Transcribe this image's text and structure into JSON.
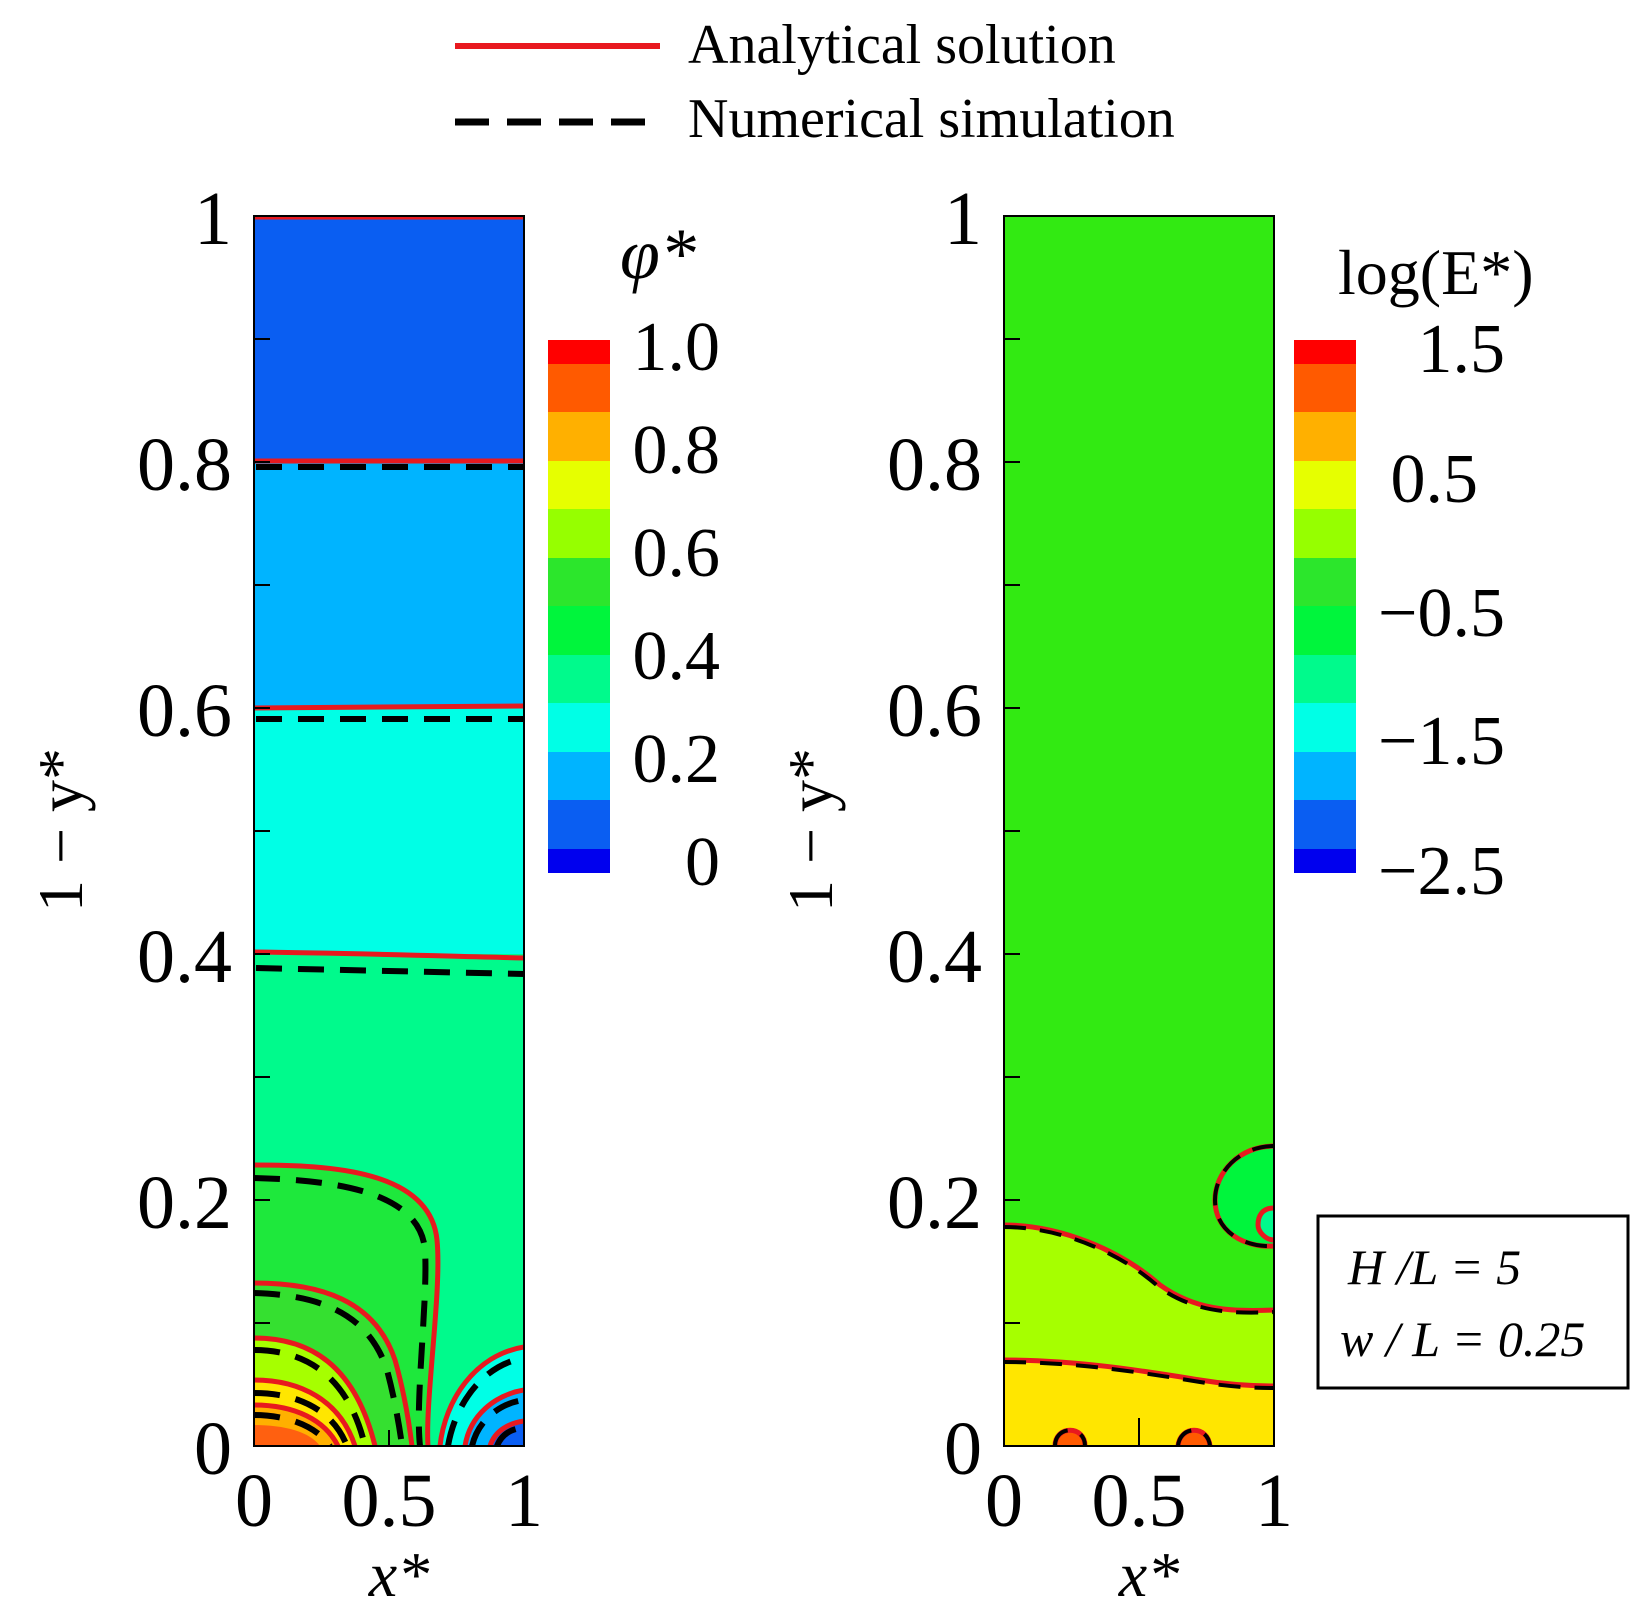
{
  "legend": {
    "analytical": "Analytical solution",
    "numerical": "Numerical simulation",
    "analytical_color": "#e8191f",
    "numerical_color": "#000000"
  },
  "params": {
    "line1": "H /L = 5",
    "line2": "w / L = 0.25"
  },
  "chart_data": [
    {
      "type": "heatmap",
      "title": "",
      "variable": "φ*",
      "xlabel": "x*",
      "ylabel": "1 − y*",
      "xlim": [
        0,
        1
      ],
      "ylim": [
        0,
        1
      ],
      "x_ticks": [
        "0",
        "0.5",
        "1"
      ],
      "y_ticks": [
        "0",
        "0.2",
        "0.4",
        "0.6",
        "0.8",
        "1"
      ],
      "colorbar": {
        "label": "φ*",
        "range": [
          0,
          1.0
        ],
        "tick_labels": [
          "1.0",
          "0.8",
          "0.6",
          "0.4",
          "0.2",
          "0"
        ],
        "levels": 11
      },
      "regions": [
        {
          "y_from": 0.8,
          "y_to": 1.0,
          "color": "#0a5ef2"
        },
        {
          "y_from": 0.6,
          "y_to": 0.8,
          "color": "#00b4ff"
        },
        {
          "y_from": 0.4,
          "y_to": 0.6,
          "color": "#00ffe6"
        },
        {
          "y_from": 0.0,
          "y_to": 0.4,
          "color": "#00fa8c"
        }
      ],
      "series": [
        {
          "name": "Analytical solution",
          "contour_levels_at_y": [
            1.0,
            0.8,
            0.6,
            0.4
          ]
        },
        {
          "name": "Numerical simulation",
          "contour_levels_at_y": [
            0.797,
            0.59,
            0.388
          ]
        }
      ]
    },
    {
      "type": "heatmap",
      "title": "",
      "variable": "log(E*)",
      "xlabel": "x*",
      "ylabel": "1 − y*",
      "xlim": [
        0,
        1
      ],
      "ylim": [
        0,
        1
      ],
      "x_ticks": [
        "0",
        "0.5",
        "1"
      ],
      "y_ticks": [
        "0",
        "0.2",
        "0.4",
        "0.6",
        "0.8",
        "1"
      ],
      "colorbar": {
        "label": "log(E*)",
        "range": [
          -2.5,
          1.5
        ],
        "tick_labels": [
          "1.5",
          "0.5",
          "−0.5",
          "−1.5",
          "−2.5"
        ],
        "levels": 11
      },
      "regions": [
        {
          "y_from": 0.11,
          "y_to": 1.0,
          "color": "#32ea12"
        },
        {
          "y_from": 0.07,
          "y_to": 0.18,
          "color": "#a6ff00"
        },
        {
          "y_from": 0.0,
          "y_to": 0.07,
          "color": "#ffe600"
        }
      ],
      "series": [
        {
          "name": "Analytical solution",
          "contour_levels_at_y": [
            0.18,
            0.07
          ]
        },
        {
          "name": "Numerical simulation",
          "contour_levels_at_y": [
            0.18,
            0.07
          ]
        }
      ]
    }
  ]
}
